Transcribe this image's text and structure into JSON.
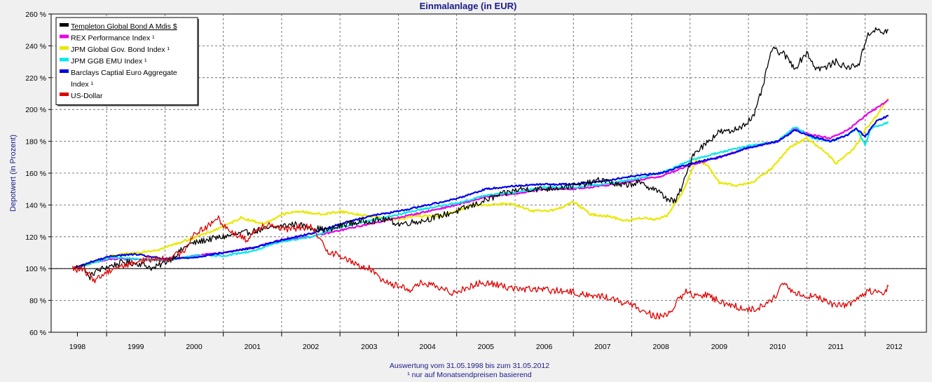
{
  "chart_data": {
    "type": "line",
    "title": "Einmalanlage (in EUR)",
    "ylabel": "Depotwert (in Prozent)",
    "xlabel": "",
    "ylim": [
      60,
      260
    ],
    "yticks": [
      60,
      80,
      100,
      120,
      140,
      160,
      180,
      200,
      220,
      240,
      260
    ],
    "ytick_suffix": " %",
    "xlim": [
      1997.55,
      2012.55
    ],
    "x_tick_labels": [
      "1998",
      "1999",
      "2000",
      "2001",
      "2002",
      "2003",
      "2004",
      "2005",
      "2006",
      "2007",
      "2008",
      "2009",
      "2010",
      "2011",
      "2012"
    ],
    "x_tick_positions": [
      1998.0,
      1999.0,
      2000.0,
      2001.0,
      2002.0,
      2003.0,
      2004.0,
      2005.0,
      2006.0,
      2007.0,
      2008.0,
      2009.0,
      2010.0,
      2011.0,
      2012.0
    ],
    "x_grid_years": [
      1998.5,
      1999.5,
      2000.5,
      2001.5,
      2002.5,
      2003.5,
      2004.5,
      2005.5,
      2006.5,
      2007.5,
      2008.5,
      2009.5,
      2010.5,
      2011.5
    ],
    "reference_line": 100,
    "grid": true,
    "legend_position": "top-left",
    "footnote_lines": [
      "Auswertung vom 31.05.1998 bis zum 31.05.2012",
      "¹ nur auf Monatsendpreisen basierend"
    ],
    "series": [
      {
        "name": "Templeton Global Bond A Mdis $",
        "legend_lines": [
          "Templeton Global Bond A Mdis $"
        ],
        "color": "#000000",
        "noise": 2.0,
        "x": [
          1997.92,
          1998.1,
          1998.2,
          1998.3,
          1998.5,
          1998.8,
          1999.1,
          1999.3,
          1999.6,
          1999.9,
          2000.2,
          2000.5,
          2000.8,
          2001.1,
          2001.4,
          2001.7,
          2002.0,
          2002.3,
          2002.6,
          2003.0,
          2003.3,
          2003.5,
          2003.9,
          2004.2,
          2004.5,
          2004.8,
          2005.0,
          2005.3,
          2005.6,
          2006.0,
          2006.5,
          2006.8,
          2007.0,
          2007.3,
          2007.6,
          2007.9,
          2008.1,
          2008.25,
          2008.4,
          2008.55,
          2008.75,
          2008.9,
          2009.0,
          2009.2,
          2009.4,
          2009.6,
          2009.75,
          2009.9,
          2010.1,
          2010.3,
          2010.5,
          2010.65,
          2010.8,
          2011.0,
          2011.2,
          2011.4,
          2011.55,
          2011.7,
          2011.8,
          2011.9
        ],
        "values": [
          100,
          102,
          94,
          98,
          101,
          104,
          103,
          100,
          106,
          115,
          118,
          120,
          122,
          124,
          126,
          128,
          126,
          124,
          128,
          130,
          131,
          128,
          130,
          133,
          136,
          140,
          143,
          147,
          150,
          150,
          152,
          154,
          156,
          152,
          154,
          150,
          144,
          142,
          155,
          172,
          178,
          183,
          186,
          186,
          190,
          196,
          215,
          238,
          235,
          226,
          236,
          226,
          226,
          230,
          226,
          229,
          248,
          250,
          248,
          250
        ]
      },
      {
        "name": "REX Performance Index ¹",
        "legend_lines": [
          "REX Performance Index ¹"
        ],
        "color": "#e800e8",
        "noise": 0.5,
        "x": [
          1997.92,
          1998.3,
          1998.6,
          1999.0,
          1999.5,
          2000.0,
          2000.5,
          2001.0,
          2001.5,
          2002.0,
          2002.5,
          2003.0,
          2003.5,
          2004.0,
          2004.5,
          2005.0,
          2005.5,
          2006.0,
          2006.5,
          2007.0,
          2007.5,
          2008.0,
          2008.5,
          2009.0,
          2009.5,
          2010.0,
          2010.3,
          2010.6,
          2010.9,
          2011.2,
          2011.5,
          2011.7,
          2011.9
        ],
        "values": [
          100,
          104,
          106,
          106,
          105,
          108,
          110,
          113,
          118,
          120,
          124,
          128,
          132,
          136,
          140,
          145,
          147,
          150,
          150,
          152,
          155,
          158,
          165,
          170,
          176,
          180,
          188,
          184,
          182,
          187,
          196,
          201,
          206
        ]
      },
      {
        "name": "JPM Global Gov. Bond Index ¹",
        "legend_lines": [
          "JPM Global Gov. Bond Index ¹"
        ],
        "color": "#e8e800",
        "noise": 0.7,
        "x": [
          1997.92,
          1998.3,
          1998.6,
          1999.0,
          1999.4,
          1999.8,
          2000.2,
          2000.6,
          2000.8,
          2001.2,
          2001.5,
          2001.8,
          2002.2,
          2002.5,
          2002.8,
          2003.2,
          2003.5,
          2003.8,
          2004.2,
          2004.5,
          2004.8,
          2005.0,
          2005.4,
          2005.8,
          2006.2,
          2006.5,
          2006.8,
          2007.1,
          2007.4,
          2007.7,
          2007.9,
          2008.1,
          2008.4,
          2008.6,
          2008.8,
          2009.0,
          2009.3,
          2009.6,
          2009.9,
          2010.2,
          2010.5,
          2010.8,
          2011.0,
          2011.3,
          2011.5,
          2011.7,
          2011.9
        ],
        "values": [
          100,
          104,
          108,
          110,
          112,
          117,
          122,
          128,
          132,
          128,
          134,
          136,
          134,
          136,
          134,
          132,
          131,
          133,
          133,
          136,
          140,
          140,
          141,
          136,
          137,
          142,
          134,
          133,
          130,
          132,
          131,
          133,
          150,
          168,
          165,
          154,
          152,
          155,
          163,
          176,
          182,
          174,
          166,
          175,
          187,
          196,
          207
        ]
      },
      {
        "name": "JPM GGB EMU Index ¹",
        "legend_lines": [
          "JPM GGB EMU Index ¹"
        ],
        "color": "#00e8e8",
        "noise": 0.5,
        "x": [
          1997.92,
          1998.3,
          1998.6,
          1999.0,
          1999.5,
          2000.0,
          2000.5,
          2001.0,
          2001.5,
          2002.0,
          2002.5,
          2003.0,
          2003.5,
          2004.0,
          2004.5,
          2005.0,
          2005.5,
          2006.0,
          2006.5,
          2007.0,
          2007.5,
          2008.0,
          2008.5,
          2009.0,
          2009.5,
          2010.0,
          2010.3,
          2010.6,
          2010.9,
          2011.2,
          2011.35,
          2011.5,
          2011.6,
          2011.75,
          2011.9
        ],
        "values": [
          100,
          104,
          107,
          106,
          105,
          108,
          108,
          111,
          117,
          120,
          126,
          130,
          134,
          138,
          141,
          146,
          148,
          151,
          151,
          153,
          156,
          160,
          168,
          173,
          177,
          180,
          189,
          182,
          180,
          184,
          188,
          178,
          188,
          190,
          192
        ]
      },
      {
        "name": "Barclays Captial Euro Aggregate Index ¹",
        "legend_lines": [
          "Barclays Captial Euro Aggregate",
          "Index ¹"
        ],
        "color": "#0000e8",
        "noise": 0.5,
        "x": [
          1997.92,
          1998.3,
          1998.6,
          1999.0,
          1999.5,
          2000.0,
          2000.5,
          2001.0,
          2001.5,
          2002.0,
          2002.5,
          2003.0,
          2003.5,
          2004.0,
          2004.5,
          2005.0,
          2005.5,
          2006.0,
          2006.5,
          2007.0,
          2007.5,
          2008.0,
          2008.5,
          2009.0,
          2009.5,
          2010.0,
          2010.3,
          2010.6,
          2010.9,
          2011.2,
          2011.35,
          2011.5,
          2011.7,
          2011.9
        ],
        "values": [
          100,
          105,
          108,
          109,
          106,
          107,
          110,
          113,
          118,
          122,
          128,
          133,
          136,
          140,
          144,
          150,
          152,
          153,
          153,
          155,
          158,
          160,
          166,
          170,
          176,
          180,
          187,
          183,
          180,
          184,
          188,
          183,
          193,
          196
        ]
      },
      {
        "name": "US-Dollar",
        "legend_lines": [
          "US-Dollar"
        ],
        "color": "#e00000",
        "noise": 2.2,
        "x": [
          1997.92,
          1998.1,
          1998.3,
          1998.6,
          1998.9,
          1999.2,
          1999.5,
          1999.8,
          2000.0,
          2000.3,
          2000.4,
          2000.6,
          2000.9,
          2001.1,
          2001.3,
          2001.6,
          2001.8,
          2002.0,
          2002.3,
          2002.5,
          2002.8,
          2003.0,
          2003.2,
          2003.4,
          2003.7,
          2003.9,
          2004.1,
          2004.4,
          2004.6,
          2004.8,
          2005.0,
          2005.3,
          2005.6,
          2005.9,
          2006.2,
          2006.5,
          2006.8,
          2007.1,
          2007.4,
          2007.7,
          2007.9,
          2008.1,
          2008.3,
          2008.45,
          2008.6,
          2008.8,
          2009.0,
          2009.3,
          2009.6,
          2009.9,
          2010.1,
          2010.3,
          2010.6,
          2010.9,
          2011.2,
          2011.4,
          2011.6,
          2011.8,
          2011.9
        ],
        "values": [
          100,
          99,
          93,
          100,
          103,
          106,
          106,
          110,
          122,
          128,
          132,
          124,
          118,
          126,
          128,
          124,
          126,
          126,
          111,
          108,
          102,
          100,
          94,
          90,
          87,
          91,
          89,
          85,
          87,
          90,
          91,
          89,
          87,
          87,
          86,
          85,
          83,
          82,
          78,
          74,
          70,
          70,
          80,
          86,
          82,
          84,
          79,
          76,
          74,
          80,
          90,
          84,
          83,
          78,
          77,
          82,
          86,
          84,
          89
        ]
      }
    ]
  }
}
